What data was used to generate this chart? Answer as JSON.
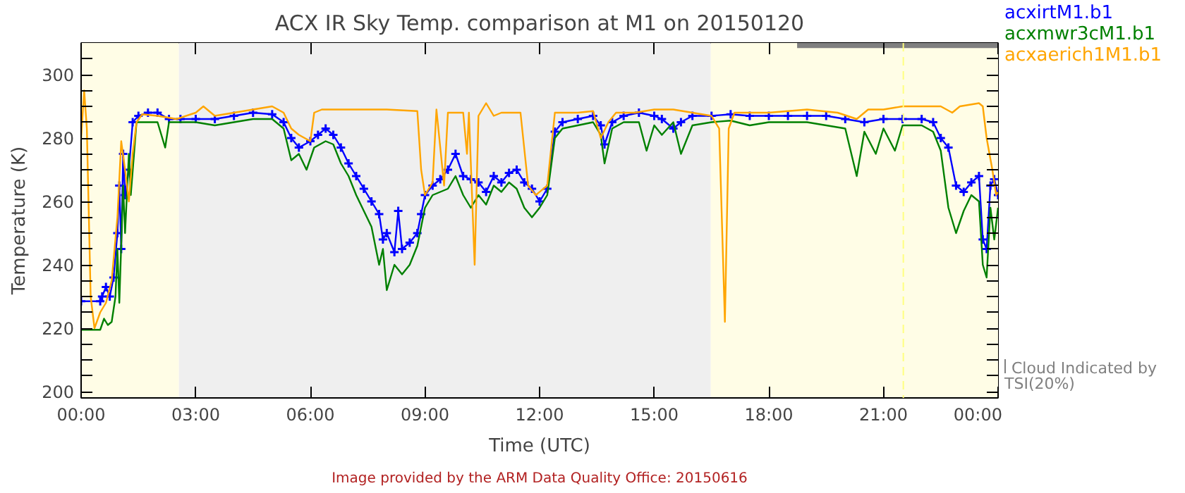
{
  "chart_data": {
    "type": "line",
    "title": "ACX IR Sky Temp. comparison at M1 on 20150120",
    "xlabel": "Time (UTC)",
    "ylabel": "Temperature (K)",
    "xlim": [
      0,
      24
    ],
    "xticks": [
      {
        "value": 0,
        "label": "00:00"
      },
      {
        "value": 3,
        "label": "03:00"
      },
      {
        "value": 6,
        "label": "06:00"
      },
      {
        "value": 9,
        "label": "09:00"
      },
      {
        "value": 12,
        "label": "12:00"
      },
      {
        "value": 15,
        "label": "15:00"
      },
      {
        "value": 18,
        "label": "18:00"
      },
      {
        "value": 21,
        "label": "21:00"
      },
      {
        "value": 24,
        "label": "00:00"
      }
    ],
    "ylim": [
      198,
      310
    ],
    "yticks": [
      200,
      {
        "value": 205,
        "label": null
      },
      {
        "value": 210,
        "label": null
      },
      {
        "value": 215,
        "label": null
      },
      220,
      {
        "value": 225,
        "label": null
      },
      {
        "value": 230,
        "label": null
      },
      {
        "value": 235,
        "label": null
      },
      240,
      {
        "value": 245,
        "label": null
      },
      {
        "value": 250,
        "label": null
      },
      {
        "value": 255,
        "label": null
      },
      260,
      {
        "value": 265,
        "label": null
      },
      {
        "value": 270,
        "label": null
      },
      {
        "value": 275,
        "label": null
      },
      280,
      {
        "value": 285,
        "label": null
      },
      {
        "value": 290,
        "label": null
      },
      {
        "value": 295,
        "label": null
      },
      300,
      {
        "value": 305,
        "label": null
      }
    ],
    "legend": "right",
    "bands": [
      {
        "axis": "x",
        "from": 0,
        "to": 2.56,
        "color": "#fffde6"
      },
      {
        "axis": "x",
        "from": 2.56,
        "to": 16.48,
        "color": "#efefef"
      },
      {
        "axis": "x",
        "from": 16.48,
        "to": 24,
        "color": "#fffde6"
      }
    ],
    "ref_lines": [
      {
        "axis": "x",
        "value": 21.52,
        "color": "#ffff80",
        "line_style": "dashed"
      }
    ],
    "series": [
      {
        "name": "acxirtM1.b1",
        "color": "#0000ff",
        "marker": "cross",
        "x": [
          0.0,
          0.5,
          0.55,
          0.65,
          0.75,
          0.85,
          0.95,
          1.0,
          1.05,
          1.1,
          1.15,
          1.25,
          1.35,
          1.5,
          1.75,
          2.0,
          2.3,
          2.6,
          3.0,
          3.5,
          4.0,
          4.5,
          5.0,
          5.3,
          5.5,
          5.7,
          6.0,
          6.2,
          6.4,
          6.6,
          6.8,
          7.0,
          7.2,
          7.4,
          7.6,
          7.8,
          7.9,
          8.0,
          8.2,
          8.3,
          8.4,
          8.6,
          8.8,
          8.9,
          9.0,
          9.2,
          9.4,
          9.6,
          9.8,
          10.0,
          10.2,
          10.4,
          10.6,
          10.8,
          11.0,
          11.2,
          11.4,
          11.6,
          11.8,
          12.0,
          12.2,
          12.4,
          12.6,
          13.0,
          13.4,
          13.6,
          13.7,
          13.9,
          14.2,
          14.6,
          15.0,
          15.2,
          15.5,
          15.7,
          16.0,
          16.5,
          17.0,
          17.5,
          18.0,
          18.5,
          19.0,
          19.5,
          20.0,
          20.5,
          21.0,
          21.5,
          22.0,
          22.3,
          22.5,
          22.7,
          22.9,
          23.1,
          23.3,
          23.5,
          23.6,
          23.7,
          23.8,
          23.9,
          24.0
        ],
        "values": [
          228.5,
          228.5,
          230,
          233,
          230,
          236,
          250,
          265,
          245,
          275,
          262,
          270,
          285,
          287,
          288,
          288,
          286,
          286,
          286,
          286,
          287,
          288,
          287.5,
          285,
          280,
          277,
          279,
          281,
          283,
          281,
          277,
          272,
          268,
          264,
          260,
          256,
          248,
          250,
          244,
          257,
          245,
          247,
          250,
          256,
          262,
          265,
          267,
          270,
          275,
          268,
          267,
          266,
          263,
          268,
          266,
          269,
          270,
          266,
          264,
          260,
          264,
          282,
          285,
          286,
          287,
          284,
          278,
          285,
          287,
          288,
          287,
          286,
          283,
          285,
          287,
          287,
          287.5,
          287,
          287,
          287,
          287,
          287,
          286,
          285,
          286,
          286,
          286,
          285,
          280,
          277,
          265,
          263,
          266,
          268,
          248,
          245,
          265,
          267,
          262
        ]
      },
      {
        "name": "acxmwr3cM1.b1",
        "color": "#008000",
        "x": [
          0.0,
          0.5,
          0.6,
          0.7,
          0.8,
          0.9,
          0.95,
          1.0,
          1.1,
          1.15,
          1.25,
          1.3,
          1.45,
          1.6,
          2.0,
          2.2,
          2.3,
          2.6,
          3.0,
          3.5,
          4.0,
          4.5,
          5.0,
          5.3,
          5.5,
          5.7,
          5.9,
          6.1,
          6.4,
          6.6,
          6.8,
          7.0,
          7.2,
          7.4,
          7.6,
          7.8,
          7.9,
          8.0,
          8.2,
          8.4,
          8.6,
          8.8,
          8.9,
          9.0,
          9.2,
          9.4,
          9.6,
          9.8,
          10.0,
          10.2,
          10.4,
          10.6,
          10.8,
          11.0,
          11.2,
          11.4,
          11.6,
          11.8,
          12.0,
          12.2,
          12.4,
          12.6,
          13.0,
          13.4,
          13.6,
          13.7,
          13.9,
          14.2,
          14.6,
          14.8,
          15.0,
          15.2,
          15.5,
          15.7,
          16.0,
          16.5,
          17.0,
          17.5,
          18.0,
          18.5,
          19.0,
          19.5,
          20.0,
          20.3,
          20.5,
          20.8,
          21.0,
          21.3,
          21.5,
          22.0,
          22.3,
          22.5,
          22.7,
          22.9,
          23.1,
          23.3,
          23.5,
          23.6,
          23.7,
          23.8,
          23.9,
          24.0
        ],
        "values": [
          219.5,
          219.5,
          223,
          221,
          222,
          230,
          245,
          228,
          265,
          250,
          275,
          262,
          285,
          285,
          285,
          277,
          285,
          285,
          285,
          284,
          285,
          286,
          286,
          283,
          273,
          275,
          270,
          277,
          279,
          278,
          272,
          268,
          262,
          257,
          252,
          240,
          245,
          232,
          240,
          237,
          240,
          246,
          252,
          258,
          262,
          263,
          264,
          268,
          262,
          258,
          262,
          259,
          265,
          263,
          266,
          264,
          258,
          255,
          258,
          262,
          280,
          283,
          284,
          285,
          281,
          272,
          283,
          285,
          285,
          276,
          284,
          281,
          285,
          275,
          284,
          285,
          285.5,
          284,
          285,
          285,
          285,
          284,
          283,
          268,
          282,
          275,
          283,
          276,
          284,
          284,
          282,
          276,
          258,
          250,
          257,
          262,
          260,
          240,
          236,
          258,
          248,
          258
        ]
      },
      {
        "name": "acxaerich1M1.b1",
        "color": "#ffa500",
        "x": [
          0.0,
          0.08,
          0.15,
          0.25,
          0.35,
          0.5,
          0.65,
          0.8,
          0.95,
          1.05,
          1.15,
          1.25,
          1.35,
          1.45,
          1.6,
          2.0,
          2.5,
          3.0,
          3.2,
          3.5,
          4.0,
          4.5,
          5.0,
          5.3,
          5.5,
          5.7,
          6.0,
          6.1,
          6.3,
          7.0,
          8.0,
          8.8,
          8.9,
          9.0,
          9.2,
          9.3,
          9.5,
          9.6,
          10.0,
          10.1,
          10.15,
          10.3,
          10.4,
          10.6,
          10.8,
          11.0,
          11.5,
          11.7,
          11.9,
          12.2,
          12.4,
          13.0,
          13.4,
          13.6,
          13.8,
          14.0,
          14.5,
          15.0,
          15.5,
          16.0,
          16.5,
          16.7,
          16.85,
          16.95,
          17.1,
          17.5,
          18.0,
          19.0,
          19.8,
          20.3,
          20.6,
          21.0,
          21.5,
          22.0,
          22.5,
          22.8,
          23.0,
          23.5,
          23.6,
          23.7,
          23.85,
          23.95,
          24.0
        ],
        "values": [
          280,
          295,
          283,
          230,
          220,
          225,
          228,
          235,
          255,
          279,
          270,
          260,
          275,
          285,
          287.5,
          287,
          286,
          288,
          290,
          287,
          288,
          289,
          290,
          288,
          283,
          281,
          279,
          288,
          289,
          289,
          289,
          288.5,
          270,
          262,
          266,
          289,
          265,
          288,
          288,
          275,
          288,
          240,
          287,
          291,
          287,
          288,
          288,
          265,
          262,
          265,
          288,
          288,
          288.5,
          280,
          285,
          288,
          288,
          289,
          289,
          288,
          287,
          283,
          222,
          283,
          288,
          288,
          288,
          289,
          288,
          286,
          289,
          289,
          290,
          290,
          290,
          288,
          290,
          291,
          290,
          280,
          270,
          262,
          263
        ]
      },
      {
        "name": "Cloud Indicated by TSI(20%)",
        "color": "#808080",
        "x": [
          18.74,
          24
        ],
        "values": [
          309.5,
          309.5
        ]
      }
    ],
    "annotations": [
      "Image provided by the ARM Data Quality Office: 20150616"
    ]
  }
}
